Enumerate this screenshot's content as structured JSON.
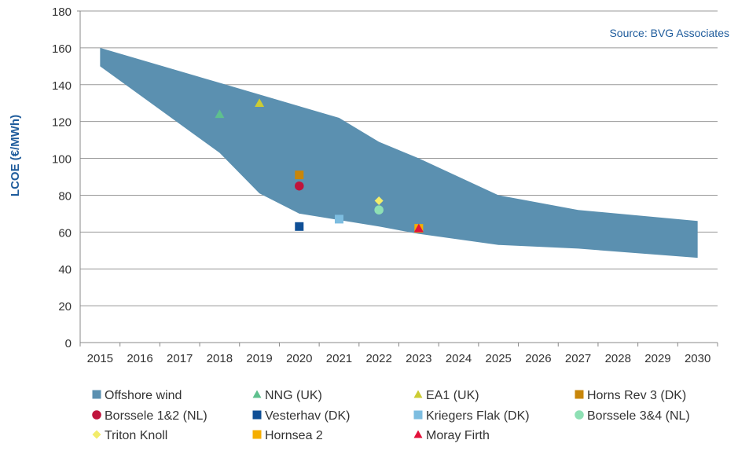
{
  "chart_data": {
    "type": "scatter",
    "title": "",
    "xlabel": "",
    "ylabel": "LCOE (€/MWh)",
    "source_note": "Source: BVG Associates",
    "ylim": [
      0,
      180
    ],
    "y_ticks": [
      0,
      20,
      40,
      60,
      80,
      100,
      120,
      140,
      160,
      180
    ],
    "x_ticks": [
      2015,
      2016,
      2017,
      2018,
      2019,
      2020,
      2021,
      2022,
      2023,
      2024,
      2025,
      2026,
      2027,
      2028,
      2029,
      2030
    ],
    "x_tick_labels": [
      "2015",
      "2016",
      "2017",
      "2018",
      "2019",
      "2020",
      "2021",
      "2022",
      "2023",
      "2024",
      "2025",
      "2026",
      "2027",
      "2028",
      "2029",
      "2030"
    ],
    "xlim": [
      2014.5,
      2030.5
    ],
    "grid": true,
    "band": {
      "name": "Offshore wind",
      "color": "#5b90b0",
      "upper": [
        [
          2015,
          160
        ],
        [
          2018,
          141
        ],
        [
          2021,
          122
        ],
        [
          2022,
          109
        ],
        [
          2023,
          100
        ],
        [
          2025,
          80
        ],
        [
          2027,
          72
        ],
        [
          2030,
          66
        ]
      ],
      "lower": [
        [
          2015,
          150
        ],
        [
          2018,
          103
        ],
        [
          2019,
          81
        ],
        [
          2020,
          70
        ],
        [
          2022,
          63
        ],
        [
          2023,
          59
        ],
        [
          2025,
          53
        ],
        [
          2027,
          51
        ],
        [
          2030,
          46
        ]
      ]
    },
    "series": [
      {
        "name": "NNG (UK)",
        "marker": "triangle",
        "color": "#5ec08e",
        "points": [
          [
            2018,
            124
          ]
        ]
      },
      {
        "name": "EA1 (UK)",
        "marker": "triangle",
        "color": "#cccc33",
        "points": [
          [
            2019,
            130
          ]
        ]
      },
      {
        "name": "Horns Rev 3 (DK)",
        "marker": "square",
        "color": "#c8860a",
        "points": [
          [
            2020,
            91
          ]
        ]
      },
      {
        "name": "Borssele 1&2 (NL)",
        "marker": "circle",
        "color": "#c0143c",
        "points": [
          [
            2020,
            85
          ]
        ]
      },
      {
        "name": "Vesterhav (DK)",
        "marker": "square",
        "color": "#0f4f96",
        "points": [
          [
            2020,
            63
          ]
        ]
      },
      {
        "name": "Kriegers Flak (DK)",
        "marker": "square",
        "color": "#7dbde0",
        "points": [
          [
            2021,
            67
          ]
        ]
      },
      {
        "name": "Borssele 3&4 (NL)",
        "marker": "circle",
        "color": "#8ee0b4",
        "points": [
          [
            2022,
            72
          ]
        ]
      },
      {
        "name": "Triton Knoll",
        "marker": "diamond",
        "color": "#f2ec6a",
        "points": [
          [
            2022,
            77
          ]
        ]
      },
      {
        "name": "Hornsea 2",
        "marker": "square",
        "color": "#f5ae00",
        "points": [
          [
            2023,
            62
          ]
        ]
      },
      {
        "name": "Moray Firth",
        "marker": "triangle",
        "color": "#e3123a",
        "points": [
          [
            2023,
            62
          ]
        ]
      }
    ]
  },
  "ui": {
    "source_color": "#1f5c9c",
    "ylabel_color": "#1f5c9c",
    "grid_color": "#999999"
  }
}
